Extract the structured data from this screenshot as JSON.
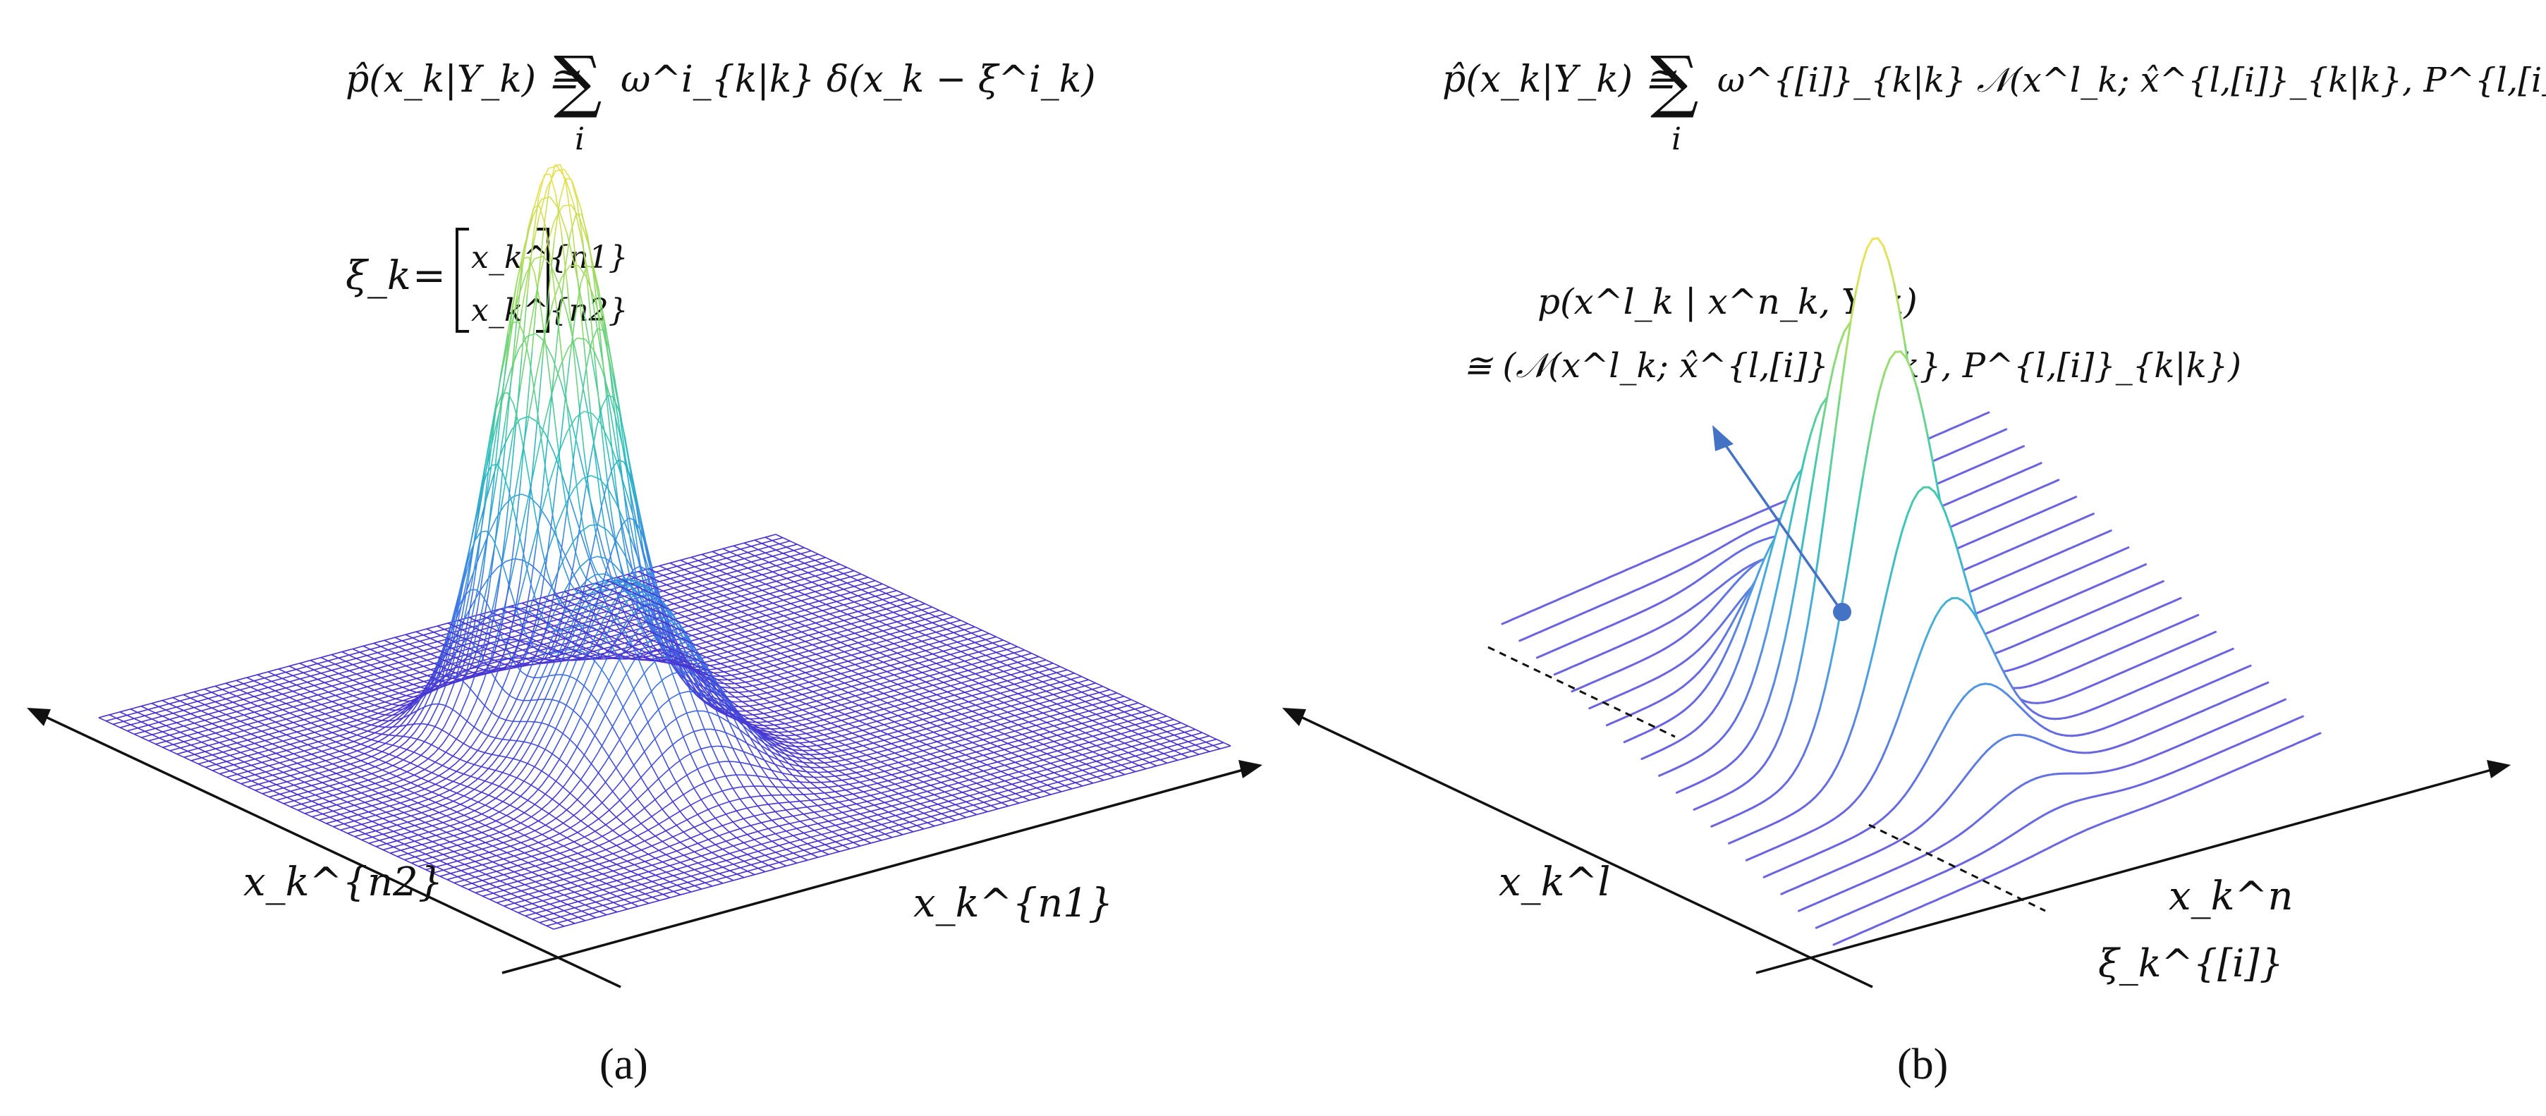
{
  "figure": {
    "panel_a": {
      "caption": "(a)",
      "equation": {
        "lhs": "p̂(x_k|Y_k) ≅",
        "sum": "∑",
        "sum_index": "i",
        "rhs": "ω^i_{k|k} δ(x_k − ξ^i_k)"
      },
      "state_vector": {
        "symbol": "ξ_k",
        "equals": "=",
        "entry_top": "x_k^{n1}",
        "entry_bottom": "x_k^{n2}"
      },
      "axis_label_left": "x_k^{n2}",
      "axis_label_right": "x_k^{n1}",
      "surface": {
        "type": "mesh-3d-gaussian-mixture",
        "colormap": [
          "#4a2fd0",
          "#3d7ee8",
          "#2dc0c0",
          "#7fd86a",
          "#e8e050"
        ]
      }
    },
    "panel_b": {
      "caption": "(b)",
      "equation": {
        "lhs": "p̂(x_k|Y_k) ≅",
        "sum": "∑",
        "sum_index": "i",
        "rhs": "ω^{[i]}_{k|k} 𝒩(x^l_k; x̂^{l,[i]}_{k|k}, P^{l,[i]}_{k|k}) δ(x_k − ξ^{[i]}_k)"
      },
      "annotation": {
        "line1": "p(x^l_k | x^n_k, Y_k)",
        "line2": "≅ (𝒩(x^l_k; x̂^{l,[i]}_{k|k}, P^{l,[i]}_{k|k})"
      },
      "axis_label_left": "x_k^l",
      "axis_label_right": "x_k^n",
      "particle_label": "ξ_k^{[i]}",
      "curves": {
        "type": "waterfall-gaussian-slices",
        "colormap": [
          "#6b63e0",
          "#4aa6e0",
          "#3cc7b4",
          "#8fdc74",
          "#f1e35a"
        ]
      }
    }
  }
}
